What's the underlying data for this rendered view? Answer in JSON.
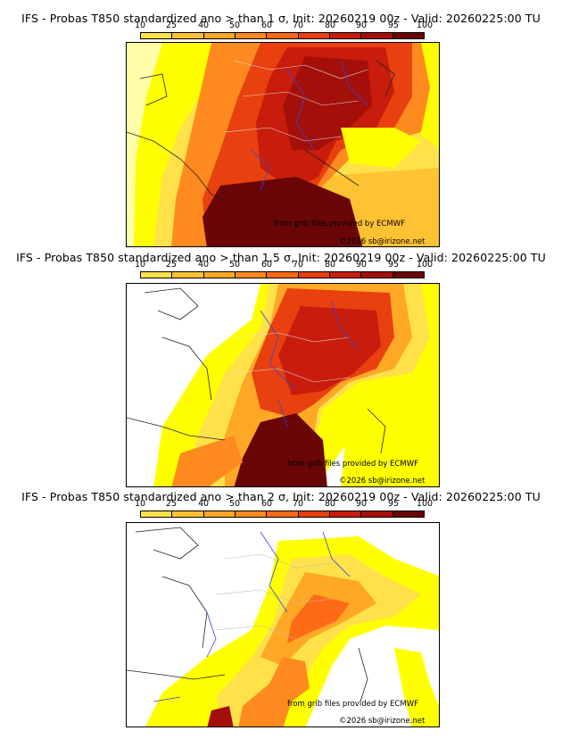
{
  "legend": {
    "ticks": [
      "10",
      "25",
      "40",
      "50",
      "60",
      "70",
      "80",
      "90",
      "95",
      "100"
    ],
    "colors": [
      "#ffff00",
      "#ffe14a",
      "#ffc233",
      "#ffa826",
      "#ff8a1f",
      "#ff6a16",
      "#e8400f",
      "#c81c0c",
      "#a50f0a",
      "#6a0606"
    ]
  },
  "panels": [
    {
      "title": "IFS - Probas T850  standardized ano > than 1 σ, Init: 20260219 00z - Valid: 20260225:00 TU",
      "credit_source": "from grib files provided by ECMWF",
      "credit_copyright": "©2026 sb@irizone.net"
    },
    {
      "title": "IFS - Probas T850  standardized ano > than 1.5 σ, Init: 20260219 00z - Valid: 20260225:00 TU",
      "credit_source": "from grib files provided by ECMWF",
      "credit_copyright": "©2026 sb@irizone.net"
    },
    {
      "title": "IFS - Probas T850  standardized ano > than 2 σ, Init: 20260219 00z - Valid: 20260225:00 TU",
      "credit_source": "from grib files provided by ECMWF",
      "credit_copyright": "©2026 sb@irizone.net"
    }
  ]
}
